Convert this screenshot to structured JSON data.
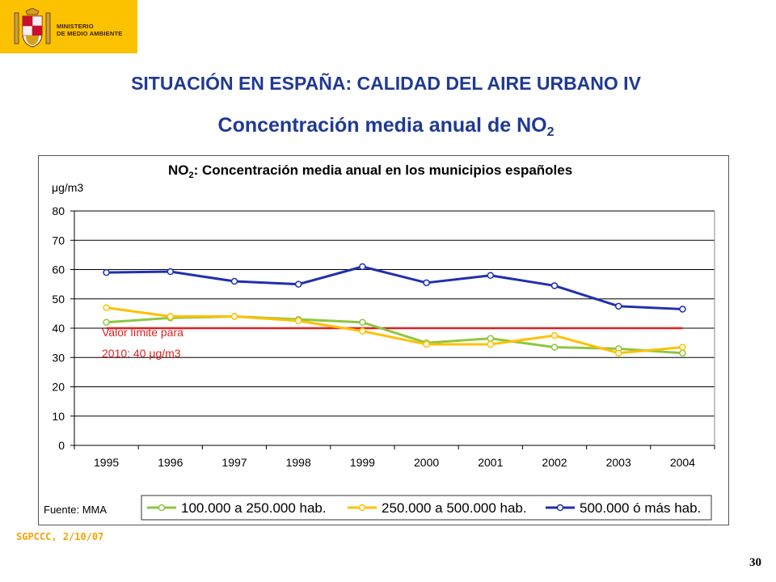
{
  "header": {
    "logo_line1": "MINISTERIO",
    "logo_line2": "DE MEDIO AMBIENTE"
  },
  "slide": {
    "title": "SITUACIÓN EN ESPAÑA: CALIDAD DEL AIRE URBANO IV",
    "subtitle_main": "Concentración media anual de NO",
    "subtitle_sub": "2",
    "footer": "SGPCCC, 2/10/07",
    "page_number": "30"
  },
  "colors": {
    "title": "#1f3a93",
    "logo_bg": "#fcc200",
    "series_small": "#8dc63f",
    "series_mid": "#ffc000",
    "series_large": "#1f2fb0",
    "limit": "#e02020"
  },
  "chart_data": {
    "type": "line",
    "title_main": "NO",
    "title_sub": "2",
    "title_rest": ": Concentración media anual en los municipios españoles",
    "ylabel": "μg/m3",
    "source": "Fuente: MMA",
    "ylim": [
      0,
      80
    ],
    "yticks": [
      0,
      10,
      20,
      30,
      40,
      50,
      60,
      70,
      80
    ],
    "grid": true,
    "legend_position": "bottom",
    "categories": [
      "1995",
      "1996",
      "1997",
      "1998",
      "1999",
      "2000",
      "2001",
      "2002",
      "2003",
      "2004"
    ],
    "series": [
      {
        "name": "100.000 a 250.000 hab.",
        "color": "#8dc63f",
        "values": [
          42,
          43.5,
          44,
          43,
          42,
          35,
          36.5,
          33.5,
          33,
          31.5
        ]
      },
      {
        "name": "250.000 a 500.000 hab.",
        "color": "#ffc000",
        "values": [
          47,
          44,
          44,
          42.5,
          39,
          34.5,
          34.5,
          37.5,
          31.5,
          33.5
        ]
      },
      {
        "name": "500.000 ó más hab.",
        "color": "#1f2fb0",
        "values": [
          59,
          59.3,
          56,
          55,
          61,
          55.5,
          58,
          54.5,
          47.5,
          46.5
        ]
      }
    ],
    "limit_line": {
      "value": 40,
      "label_line1": "Valor límite para",
      "label_line2": "2010: 40  μg/m3",
      "color": "#e02020"
    }
  }
}
